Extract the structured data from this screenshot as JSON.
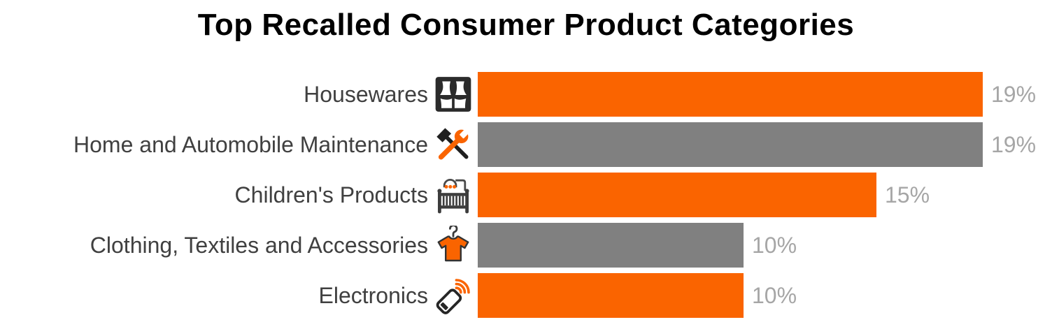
{
  "title": "Top Recalled Consumer Product Categories",
  "colors": {
    "accent_orange": "#FA6400",
    "bar_gray": "#808080",
    "value_label_text": "#A6A6A6",
    "category_label_text": "#404040",
    "title_text": "#000000",
    "background": "#FFFFFF"
  },
  "chart_data": {
    "type": "bar",
    "orientation": "horizontal",
    "title": "Top Recalled Consumer Product Categories",
    "xlabel": "",
    "ylabel": "",
    "unit": "%",
    "xlim": [
      0,
      19
    ],
    "grid": false,
    "legend": false,
    "value_labels_position": "right-of-bar",
    "categories": [
      "Housewares",
      "Home and Automobile Maintenance",
      "Children's Products",
      "Clothing, Textiles and Accessories",
      "Electronics"
    ],
    "values": [
      19,
      19,
      15,
      10,
      10
    ],
    "rows": [
      {
        "category": "Housewares",
        "value": 19,
        "label": "19%",
        "color": "#FA6400",
        "icon": "window-curtains-icon"
      },
      {
        "category": "Home and Automobile Maintenance",
        "value": 19,
        "label": "19%",
        "color": "#808080",
        "icon": "hammer-wrench-icon"
      },
      {
        "category": "Children's Products",
        "value": 15,
        "label": "15%",
        "color": "#FA6400",
        "icon": "baby-crib-icon"
      },
      {
        "category": "Clothing, Textiles and Accessories",
        "value": 10,
        "label": "10%",
        "color": "#808080",
        "icon": "tshirt-hanger-icon"
      },
      {
        "category": "Electronics",
        "value": 10,
        "label": "10%",
        "color": "#FA6400",
        "icon": "smartphone-signal-icon"
      }
    ]
  }
}
